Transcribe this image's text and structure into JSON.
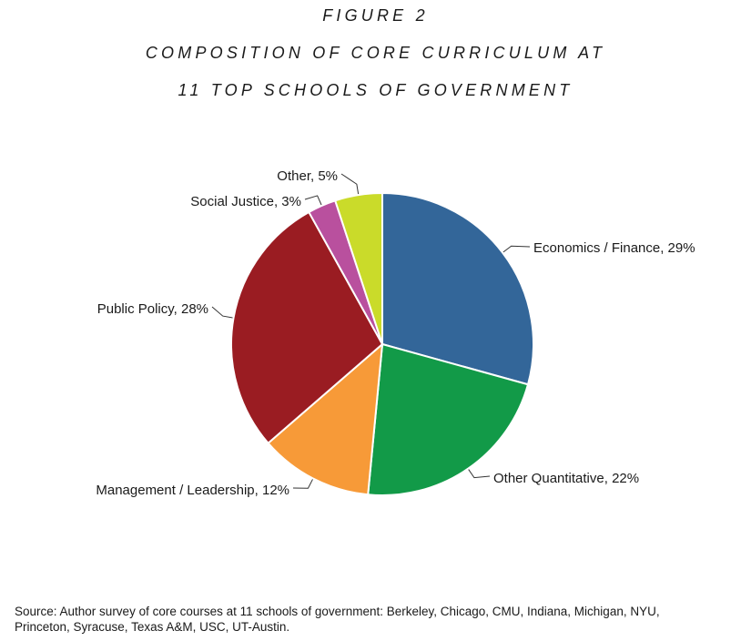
{
  "figure_label": "FIGURE 2",
  "title_line1": "COMPOSITION OF CORE CURRICULUM AT",
  "title_line2": "11 TOP SCHOOLS OF GOVERNMENT",
  "source_line1": "Source: Author survey of core courses at 11 schools of government: Berkeley, Chicago, CMU, Indiana, Michigan, NYU,",
  "source_line2": "Princeton, Syracuse, Texas A&M, USC, UT-Austin.",
  "chart_data": {
    "type": "pie",
    "slices": [
      {
        "label": "Economics / Finance, 29%",
        "value": 29,
        "color": "#336699"
      },
      {
        "label": "Other Quantitative, 22%",
        "value": 22,
        "color": "#129A48"
      },
      {
        "label": "Management / Leadership, 12%",
        "value": 12,
        "color": "#F79A38"
      },
      {
        "label": "Public Policy, 28%",
        "value": 28,
        "color": "#9A1C22"
      },
      {
        "label": "Social Justice, 3%",
        "value": 3,
        "color": "#B9509E"
      },
      {
        "label": "Other, 5%",
        "value": 5,
        "color": "#CADB2A"
      }
    ]
  }
}
